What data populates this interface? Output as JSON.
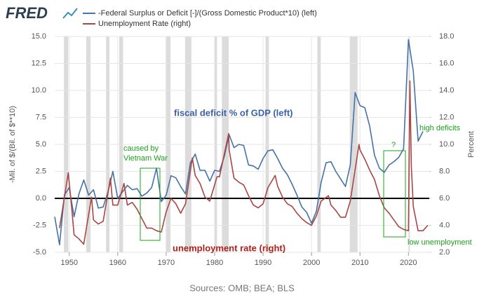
{
  "chart_data": {
    "type": "line",
    "logo": "FRED",
    "source": "Sources: OMB; BEA; BLS",
    "ylabel": "-Mil. of $/(Bil. of $**10)",
    "y2label": "Percent",
    "xlim": [
      1947,
      2024.3
    ],
    "xticks": [
      1950,
      1960,
      1970,
      1980,
      1990,
      2000,
      2010,
      2020
    ],
    "ylim": [
      -5,
      15
    ],
    "yticks": [
      {
        "value": -5,
        "label": "-5.0"
      },
      {
        "value": -2.5,
        "label": "-2.5"
      },
      {
        "value": 0,
        "label": "0.0"
      },
      {
        "value": 2.5,
        "label": "2.5"
      },
      {
        "value": 5,
        "label": "5.0"
      },
      {
        "value": 7.5,
        "label": "7.5"
      },
      {
        "value": 10,
        "label": "10.0"
      },
      {
        "value": 12.5,
        "label": "12.5"
      },
      {
        "value": 15,
        "label": "15.0"
      }
    ],
    "y2lim": [
      2,
      18
    ],
    "y2ticks": [
      {
        "value": 2,
        "label": "2.0"
      },
      {
        "value": 4,
        "label": "4.0"
      },
      {
        "value": 6,
        "label": "6.0"
      },
      {
        "value": 8,
        "label": "8.0"
      },
      {
        "value": 10,
        "label": "10.0"
      },
      {
        "value": 12,
        "label": "12.0"
      },
      {
        "value": 14,
        "label": "14.0"
      },
      {
        "value": 16,
        "label": "16.0"
      },
      {
        "value": 18,
        "label": "18.0"
      }
    ],
    "grid": true,
    "zero_line": true,
    "recessions": [
      [
        1948.9,
        1949.8
      ],
      [
        1953.5,
        1954.4
      ],
      [
        1957.6,
        1958.3
      ],
      [
        1960.3,
        1961.1
      ],
      [
        1969.9,
        1970.9
      ],
      [
        1973.9,
        1975.2
      ],
      [
        1980.0,
        1980.5
      ],
      [
        1981.5,
        1982.9
      ],
      [
        1990.5,
        1991.2
      ],
      [
        2001.2,
        2001.9
      ],
      [
        2007.9,
        2009.5
      ],
      [
        2020.1,
        2020.3
      ]
    ],
    "series": [
      {
        "name": "-Federal Surplus or Deficit [-]/(Gross Domestic Product*10) (left)",
        "color": "#4572a7",
        "x": [
          1947,
          1948,
          1949,
          1950,
          1951,
          1952,
          1953,
          1954,
          1955,
          1956,
          1957,
          1958,
          1959,
          1960,
          1961,
          1962,
          1963,
          1964,
          1965,
          1966,
          1967,
          1968,
          1969,
          1970,
          1971,
          1972,
          1973,
          1974,
          1975,
          1976,
          1977,
          1978,
          1979,
          1980,
          1981,
          1982,
          1983,
          1984,
          1985,
          1986,
          1987,
          1988,
          1989,
          1990,
          1991,
          1992,
          1993,
          1994,
          1995,
          1996,
          1997,
          1998,
          1999,
          2000,
          2001,
          2002,
          2003,
          2004,
          2005,
          2006,
          2007,
          2008,
          2009,
          2010,
          2011,
          2012,
          2013,
          2014,
          2015,
          2016,
          2017,
          2018,
          2019,
          2020,
          2021,
          2022,
          2023
        ],
        "values": [
          -1.7,
          -4.3,
          0.3,
          1.0,
          -1.7,
          0.4,
          1.7,
          0.3,
          0.8,
          -0.9,
          -0.8,
          0.6,
          2.5,
          0.0,
          0.6,
          1.2,
          0.8,
          0.9,
          0.2,
          0.5,
          1.0,
          2.8,
          -0.3,
          0.3,
          2.1,
          1.9,
          1.1,
          0.4,
          3.3,
          4.1,
          2.6,
          2.6,
          1.6,
          2.6,
          2.5,
          3.9,
          5.9,
          4.7,
          5.0,
          4.9,
          3.1,
          3.0,
          2.7,
          3.7,
          4.4,
          4.5,
          3.7,
          2.8,
          2.2,
          1.3,
          0.3,
          -0.8,
          -1.3,
          -2.3,
          -1.2,
          1.5,
          3.3,
          3.4,
          2.5,
          1.8,
          1.1,
          3.1,
          9.8,
          8.6,
          8.4,
          6.7,
          4.0,
          2.8,
          2.4,
          3.1,
          3.4,
          3.8,
          4.6,
          14.7,
          11.8,
          5.3,
          6.2
        ]
      },
      {
        "name": "Unemployment Rate (right)",
        "color": "#aa4643",
        "axis": "y2",
        "x": [
          1948,
          1949.8,
          1950.5,
          1951,
          1952,
          1953,
          1954.6,
          1955,
          1956,
          1957,
          1958.5,
          1959,
          1960,
          1961.3,
          1962,
          1963,
          1964,
          1965,
          1966,
          1967,
          1968,
          1969,
          1970,
          1971,
          1972,
          1973,
          1974,
          1975.4,
          1976,
          1977,
          1978,
          1979,
          1980.5,
          1981,
          1982.9,
          1983,
          1984,
          1985,
          1986,
          1987,
          1988,
          1989,
          1990,
          1991,
          1992.5,
          1993,
          1994,
          1995,
          1996,
          1997,
          1998,
          1999,
          2000,
          2001,
          2002,
          2003.5,
          2004,
          2005,
          2006,
          2007,
          2008,
          2009.8,
          2010,
          2011,
          2012,
          2013,
          2014,
          2015,
          2016,
          2017,
          2018,
          2019,
          2020.0,
          2020.3,
          2020.6,
          2021,
          2022,
          2023,
          2024
        ],
        "values": [
          3.8,
          7.9,
          5.3,
          3.3,
          3.0,
          2.6,
          6.1,
          4.4,
          4.1,
          4.3,
          7.5,
          5.5,
          5.5,
          7.1,
          5.5,
          5.7,
          5.2,
          4.5,
          3.8,
          3.8,
          3.6,
          3.5,
          5.0,
          6.0,
          5.6,
          4.9,
          5.6,
          9.0,
          7.7,
          7.1,
          6.1,
          5.8,
          7.6,
          7.6,
          10.8,
          9.6,
          7.5,
          7.2,
          7.0,
          6.2,
          5.5,
          5.3,
          5.6,
          6.8,
          7.7,
          6.9,
          6.1,
          5.6,
          5.4,
          4.9,
          4.5,
          4.2,
          4.0,
          4.7,
          5.8,
          6.2,
          5.5,
          5.1,
          4.6,
          4.6,
          5.8,
          10.0,
          9.6,
          8.9,
          8.1,
          7.4,
          6.2,
          5.3,
          4.9,
          4.4,
          3.9,
          3.7,
          3.6,
          14.7,
          8.4,
          5.4,
          3.6,
          3.6,
          4.0
        ]
      }
    ],
    "annotations": [
      "fiscal deficit % of GDP (left)",
      "caused by",
      "Vietnam War",
      "unemployment rate (right)",
      "?",
      "high deficits",
      "low unemployment"
    ]
  }
}
